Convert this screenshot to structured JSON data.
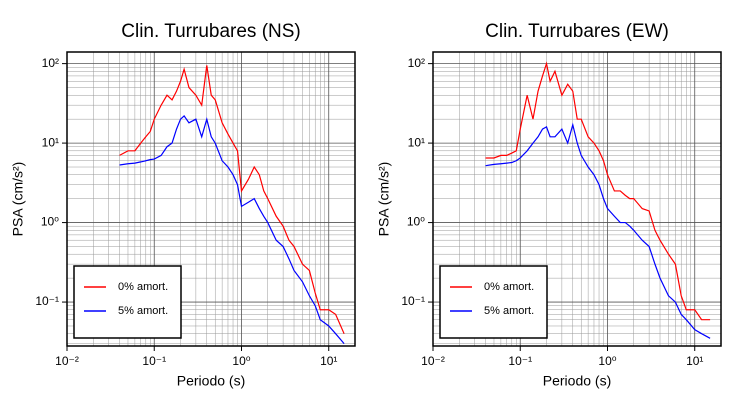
{
  "chart_data": [
    {
      "type": "line",
      "title": "Clin. Turrubares (NS)",
      "xlabel": "Periodo (s)",
      "ylabel": "PSA (cm/s²)",
      "xscale": "log",
      "yscale": "log",
      "grid": true,
      "legend": "lower left",
      "xlim": [
        0.01,
        20
      ],
      "ylim": [
        0.028,
        140
      ],
      "xticks": [
        {
          "value": 0.01,
          "label": "10⁻²"
        },
        {
          "value": 0.1,
          "label": "10⁻¹"
        },
        {
          "value": 1,
          "label": "10⁰"
        },
        {
          "value": 10,
          "label": "10¹"
        }
      ],
      "yticks": [
        {
          "value": 0.1,
          "label": "10⁻¹"
        },
        {
          "value": 1,
          "label": "10⁰"
        },
        {
          "value": 10,
          "label": "10¹"
        },
        {
          "value": 100,
          "label": "10²"
        }
      ],
      "x": [
        0.04,
        0.05,
        0.06,
        0.07,
        0.08,
        0.09,
        0.1,
        0.12,
        0.14,
        0.16,
        0.18,
        0.2,
        0.22,
        0.25,
        0.3,
        0.35,
        0.4,
        0.45,
        0.5,
        0.6,
        0.7,
        0.8,
        0.9,
        1.0,
        1.2,
        1.4,
        1.6,
        1.8,
        2,
        2.5,
        3,
        3.5,
        4,
        5,
        6,
        7,
        8,
        10,
        12,
        15
      ],
      "series": [
        {
          "name": "0% amort.",
          "color": "#ff0000",
          "values": [
            7,
            8,
            8,
            10,
            12,
            14,
            20,
            30,
            40,
            35,
            45,
            60,
            85,
            50,
            40,
            30,
            95,
            40,
            35,
            18,
            13,
            10,
            8,
            2.5,
            3.5,
            5,
            4,
            2.5,
            2,
            1.2,
            0.9,
            0.6,
            0.5,
            0.3,
            0.25,
            0.13,
            0.08,
            0.08,
            0.07,
            0.04
          ]
        },
        {
          "name": "5% amort.",
          "color": "#0000ff",
          "values": [
            5.3,
            5.5,
            5.6,
            5.8,
            6,
            6.2,
            6.3,
            7,
            9,
            10,
            15,
            20,
            22,
            18,
            20,
            12,
            20,
            12,
            10,
            6,
            5,
            4,
            3,
            1.6,
            1.8,
            2,
            1.5,
            1.2,
            1,
            0.6,
            0.5,
            0.35,
            0.25,
            0.18,
            0.12,
            0.09,
            0.06,
            0.05,
            0.04,
            0.03
          ]
        }
      ]
    },
    {
      "type": "line",
      "title": "Clin. Turrubares (EW)",
      "xlabel": "Periodo (s)",
      "ylabel": "PSA (cm/s²)",
      "xscale": "log",
      "yscale": "log",
      "grid": true,
      "legend": "lower left",
      "xlim": [
        0.01,
        20
      ],
      "ylim": [
        0.028,
        140
      ],
      "xticks": [
        {
          "value": 0.01,
          "label": "10⁻²"
        },
        {
          "value": 0.1,
          "label": "10⁻¹"
        },
        {
          "value": 1,
          "label": "10⁰"
        },
        {
          "value": 10,
          "label": "10¹"
        }
      ],
      "yticks": [
        {
          "value": 0.1,
          "label": "10⁻¹"
        },
        {
          "value": 1,
          "label": "10⁰"
        },
        {
          "value": 10,
          "label": "10¹"
        },
        {
          "value": 100,
          "label": "10²"
        }
      ],
      "x": [
        0.04,
        0.05,
        0.06,
        0.07,
        0.08,
        0.09,
        0.1,
        0.12,
        0.14,
        0.16,
        0.18,
        0.2,
        0.22,
        0.25,
        0.3,
        0.35,
        0.4,
        0.45,
        0.5,
        0.6,
        0.7,
        0.8,
        0.9,
        1.0,
        1.2,
        1.4,
        1.6,
        1.8,
        2,
        2.5,
        3,
        3.5,
        4,
        5,
        6,
        7,
        8,
        10,
        12,
        15
      ],
      "series": [
        {
          "name": "0% amort.",
          "color": "#ff0000",
          "values": [
            6.5,
            6.5,
            7,
            7,
            7.5,
            8,
            15,
            40,
            20,
            45,
            70,
            100,
            60,
            80,
            40,
            55,
            45,
            20,
            20,
            12,
            10,
            8,
            6,
            4,
            2.5,
            2.5,
            2.2,
            2,
            2,
            1.5,
            1.4,
            0.8,
            0.6,
            0.4,
            0.3,
            0.12,
            0.08,
            0.08,
            0.06,
            0.06
          ]
        },
        {
          "name": "5% amort.",
          "color": "#0000ff",
          "values": [
            5.2,
            5.4,
            5.5,
            5.6,
            5.7,
            6,
            6.5,
            8,
            10,
            12,
            15,
            16,
            12,
            12,
            15,
            10,
            17,
            10,
            7,
            5,
            4,
            3,
            2,
            1.5,
            1.2,
            1,
            1,
            0.9,
            0.8,
            0.6,
            0.5,
            0.3,
            0.2,
            0.12,
            0.1,
            0.07,
            0.06,
            0.045,
            0.04,
            0.035
          ]
        }
      ]
    }
  ]
}
